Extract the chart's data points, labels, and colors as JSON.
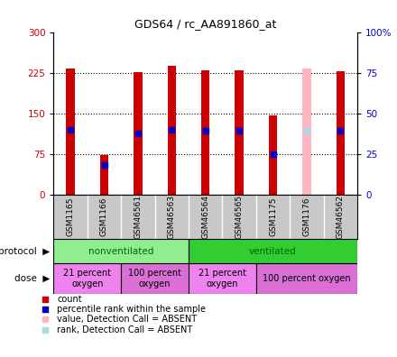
{
  "title": "GDS64 / rc_AA891860_at",
  "samples": [
    "GSM1165",
    "GSM1166",
    "GSM46561",
    "GSM46563",
    "GSM46564",
    "GSM46565",
    "GSM1175",
    "GSM1176",
    "GSM46562"
  ],
  "count_values": [
    232,
    73,
    226,
    237,
    229,
    229,
    146,
    null,
    228
  ],
  "rank_values": [
    120,
    55,
    113,
    120,
    118,
    118,
    75,
    null,
    118
  ],
  "absent_count": [
    null,
    null,
    null,
    null,
    null,
    null,
    null,
    232,
    null
  ],
  "absent_rank": [
    null,
    null,
    null,
    null,
    null,
    null,
    null,
    118,
    null
  ],
  "ylim_left": [
    0,
    300
  ],
  "yticks_left": [
    0,
    75,
    150,
    225,
    300
  ],
  "yticks_right": [
    0,
    25,
    50,
    75,
    100
  ],
  "ytick_labels_left": [
    "0",
    "75",
    "150",
    "225",
    "300"
  ],
  "ytick_labels_right": [
    "0",
    "25",
    "50",
    "75",
    "100%"
  ],
  "protocol_groups": [
    {
      "label": "nonventilated",
      "start": 0,
      "end": 4,
      "color": "#90ee90"
    },
    {
      "label": "ventilated",
      "start": 4,
      "end": 9,
      "color": "#32cd32"
    }
  ],
  "dose_groups": [
    {
      "label": "21 percent\noxygen",
      "start": 0,
      "end": 2,
      "color": "#ee82ee"
    },
    {
      "label": "100 percent\noxygen",
      "start": 2,
      "end": 4,
      "color": "#da70d6"
    },
    {
      "label": "21 percent\noxygen",
      "start": 4,
      "end": 6,
      "color": "#ee82ee"
    },
    {
      "label": "100 percent oxygen",
      "start": 6,
      "end": 9,
      "color": "#da70d6"
    }
  ],
  "bar_color_present": "#cc0000",
  "rank_color_present": "#0000cc",
  "bar_color_absent": "#ffb6c1",
  "rank_color_absent": "#add8e6",
  "bar_width": 0.25,
  "rank_marker_size": 18,
  "label_color_left": "#cc0000",
  "label_color_right": "#0000cc",
  "protocol_label_color": "#006600",
  "sample_bg": "#c8c8c8",
  "legend_items": [
    {
      "color": "#cc0000",
      "label": "count"
    },
    {
      "color": "#0000cc",
      "label": "percentile rank within the sample"
    },
    {
      "color": "#ffb6c1",
      "label": "value, Detection Call = ABSENT"
    },
    {
      "color": "#add8e6",
      "label": "rank, Detection Call = ABSENT"
    }
  ]
}
